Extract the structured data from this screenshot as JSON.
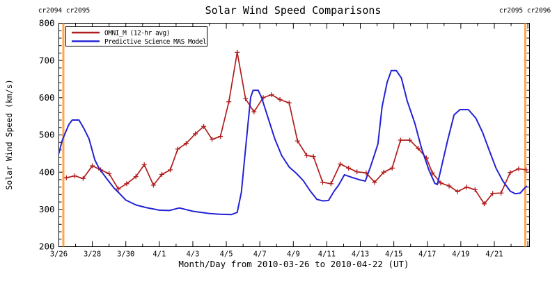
{
  "figure": {
    "title": "Solar Wind Speed Comparisons",
    "x_axis_label": "Month/Day from 2010-03-26 to 2010-04-22 (UT)",
    "y_axis_label": "Solar Wind Speed (km/s)",
    "cr_label_left": "cr2094 cr2095",
    "cr_label_right": "cr2095 cr2096",
    "legend": {
      "entries": [
        {
          "label": "OMNI_M (12-hr avg)",
          "color": "#b01c1c"
        },
        {
          "label": "Predictive Science MAS Model",
          "color": "#2222d6"
        }
      ]
    },
    "colors": {
      "omni_red": "#b01c1c",
      "mas_blue": "#2222d6",
      "carrington_orange": "#ffa64d",
      "axis": "#000000",
      "background": "#ffffff"
    }
  },
  "chart_data": {
    "type": "line",
    "title": "Solar Wind Speed Comparisons",
    "xlabel": "Month/Day from 2010-03-26 to 2010-04-22 (UT)",
    "ylabel": "Solar Wind Speed (km/s)",
    "x_unit": "days since 2010-03-26 00:00 UT",
    "xlim": [
      0,
      28.1
    ],
    "ylim": [
      200,
      800
    ],
    "grid": false,
    "legend_position": "top-left-inside",
    "x_major_tick_interval_days": 2,
    "x_minor_tick_interval_days": 1,
    "y_major_tick_interval": 100,
    "y_minor_tick_interval": 20,
    "x_tick_labels": [
      "3/26",
      "3/28",
      "3/30",
      "4/1",
      "4/3",
      "4/5",
      "4/7",
      "4/9",
      "4/11",
      "4/13",
      "4/15",
      "4/17",
      "4/19",
      "4/21"
    ],
    "y_tick_labels": [
      "200",
      "300",
      "400",
      "500",
      "600",
      "700",
      "800"
    ],
    "carrington_boundaries": [
      {
        "x_day": 0.27,
        "boundary": "cr2094/cr2095"
      },
      {
        "x_day": 27.85,
        "boundary": "cr2095/cr2096"
      }
    ],
    "series": [
      {
        "name": "OMNI_M (12-hr avg)",
        "color": "#b01c1c",
        "marker": "plus",
        "x_day": [
          0.45,
          0.95,
          1.45,
          2.0,
          2.5,
          3.0,
          3.55,
          4.05,
          4.6,
          5.1,
          5.65,
          6.15,
          6.65,
          7.1,
          7.6,
          8.15,
          8.65,
          9.15,
          9.65,
          10.15,
          10.65,
          11.15,
          11.65,
          12.2,
          12.7,
          13.2,
          13.75,
          14.25,
          14.8,
          15.2,
          15.75,
          16.25,
          16.8,
          17.3,
          17.8,
          18.35,
          18.85,
          19.4,
          19.9,
          20.4,
          20.95,
          21.45,
          21.95,
          22.3,
          22.8,
          23.3,
          23.8,
          24.35,
          24.85,
          25.4,
          25.9,
          26.4,
          26.95,
          27.45,
          27.9
        ],
        "speed_km_s": [
          385,
          390,
          383,
          417,
          406,
          396,
          355,
          369,
          388,
          420,
          365,
          394,
          406,
          462,
          477,
          503,
          523,
          488,
          496,
          589,
          722,
          597,
          562,
          600,
          608,
          595,
          586,
          484,
          445,
          442,
          373,
          369,
          422,
          411,
          401,
          398,
          373,
          400,
          411,
          486,
          486,
          464,
          438,
          398,
          371,
          363,
          348,
          360,
          353,
          315,
          343,
          344,
          399,
          409,
          406
        ]
      },
      {
        "name": "Predictive Science MAS Model",
        "color": "#2222d6",
        "marker": "none",
        "x_day": [
          0,
          0.2,
          0.4,
          0.6,
          0.8,
          1.2,
          1.5,
          1.8,
          2.15,
          2.4,
          2.85,
          3.3,
          3.55,
          4.0,
          4.6,
          5.2,
          6.0,
          6.6,
          7.2,
          8.0,
          9.0,
          9.6,
          10.3,
          10.65,
          10.9,
          11.1,
          11.3,
          11.45,
          11.6,
          11.9,
          12.1,
          12.5,
          12.9,
          13.3,
          13.75,
          14.2,
          14.6,
          15.0,
          15.4,
          15.75,
          16.1,
          16.45,
          16.7,
          17.05,
          17.5,
          18.0,
          18.3,
          18.6,
          18.85,
          19.05,
          19.3,
          19.6,
          19.85,
          20.15,
          20.45,
          20.8,
          21.25,
          21.65,
          22.1,
          22.45,
          22.6,
          22.9,
          23.2,
          23.6,
          23.95,
          24.45,
          24.9,
          25.3,
          25.7,
          26.1,
          26.5,
          26.95,
          27.25,
          27.55,
          27.8,
          27.95
        ],
        "speed_km_s": [
          450,
          485,
          507,
          528,
          540,
          540,
          517,
          490,
          433,
          411,
          383,
          357,
          346,
          325,
          312,
          305,
          298,
          297,
          304,
          295,
          289,
          287,
          286,
          292,
          346,
          440,
          532,
          601,
          620,
          620,
          601,
          545,
          489,
          445,
          414,
          396,
          377,
          350,
          327,
          323,
          324,
          350,
          365,
          393,
          386,
          379,
          376,
          414,
          448,
          476,
          576,
          641,
          673,
          673,
          653,
          591,
          532,
          465,
          405,
          370,
          367,
          425,
          483,
          554,
          568,
          568,
          545,
          507,
          458,
          411,
          377,
          349,
          342,
          344,
          357,
          363
        ]
      }
    ]
  }
}
